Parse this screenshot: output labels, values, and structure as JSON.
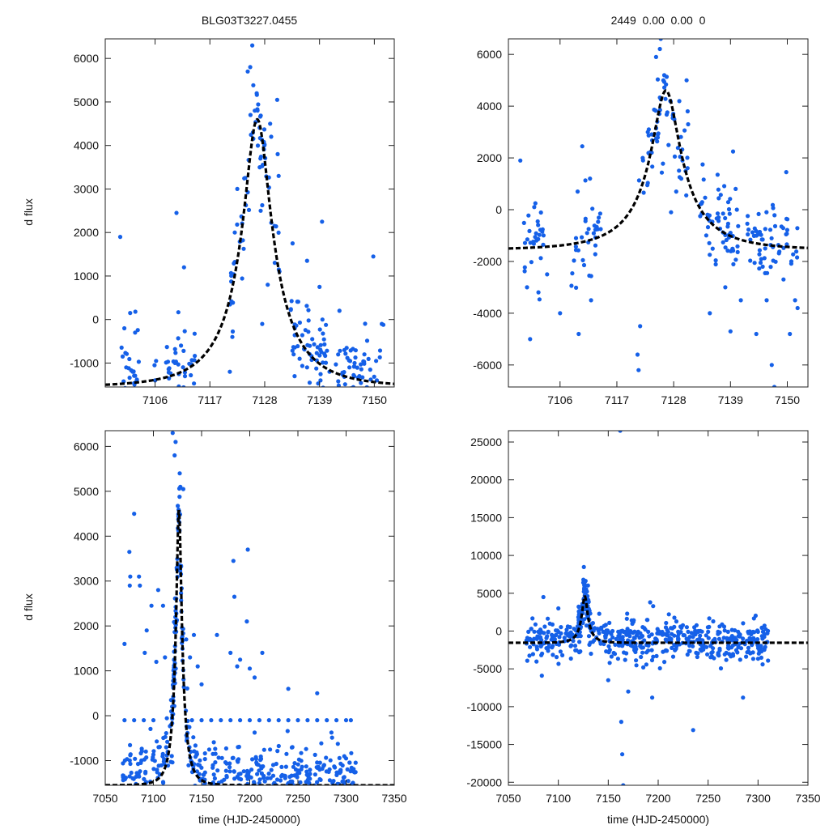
{
  "figure": {
    "left_title": "BLG03T3227.0455",
    "right_title": "2449  0.00  0.00  0"
  },
  "colors": {
    "points": "#1560e8",
    "model": "#000000",
    "axes": "#222222"
  },
  "chart_data": [
    {
      "type": "scatter",
      "id": "top-left",
      "title": "BLG03T3227.0455",
      "xlabel": "",
      "ylabel": "d flux",
      "xlim": [
        7096,
        7154
      ],
      "ylim": [
        -1550,
        6450
      ],
      "xticks": [
        7106,
        7117,
        7128,
        7139,
        7150
      ],
      "yticks": [
        -1000,
        0,
        1000,
        2000,
        3000,
        4000,
        5000,
        6000
      ],
      "model": {
        "t0": 7126.5,
        "peak": 4600,
        "baseline": -1550,
        "u0": 0.23,
        "tE": 12
      },
      "scatter_sigma": 550,
      "series": [
        {
          "name": "data",
          "points": [
            [
              7099.0,
              1900
            ],
            [
              7099.5,
              -850
            ],
            [
              7100.2,
              -1100
            ],
            [
              7101.0,
              150
            ],
            [
              7101.5,
              -1200
            ],
            [
              7102.0,
              -300
            ],
            [
              7105.9,
              -1050
            ],
            [
              7106.0,
              -1400
            ],
            [
              7106.2,
              -950
            ],
            [
              7110.3,
              2450
            ],
            [
              7110.0,
              -1000
            ],
            [
              7111.2,
              -600
            ],
            [
              7111.8,
              1200
            ],
            [
              7112.0,
              -1300
            ],
            [
              7121.0,
              -1200
            ],
            [
              7121.5,
              -400
            ],
            [
              7122.0,
              2000
            ],
            [
              7122.5,
              3000
            ],
            [
              7123.2,
              1800
            ],
            [
              7124.6,
              5700
            ],
            [
              7125.1,
              5800
            ],
            [
              7125.5,
              6300
            ],
            [
              7126.0,
              4800
            ],
            [
              7126.4,
              5200
            ],
            [
              7127.0,
              3500
            ],
            [
              7127.2,
              2500
            ],
            [
              7127.5,
              -100
            ],
            [
              7128.6,
              800
            ],
            [
              7129.1,
              4500
            ],
            [
              7129.3,
              4200
            ],
            [
              7130.5,
              5050
            ],
            [
              7130.6,
              3800
            ],
            [
              7130.8,
              3300
            ],
            [
              7133.6,
              1750
            ],
            [
              7133.8,
              -800
            ],
            [
              7134.0,
              -1300
            ],
            [
              7135.0,
              -900
            ],
            [
              7136.5,
              -1100
            ],
            [
              7136.5,
              1350
            ],
            [
              7139.0,
              750
            ],
            [
              7139.2,
              -1400
            ],
            [
              7139.5,
              2250
            ],
            [
              7141.0,
              -1200
            ],
            [
              7143.0,
              200
            ],
            [
              7144.0,
              -700
            ],
            [
              7145.0,
              -1100
            ],
            [
              7147.0,
              -1300
            ],
            [
              7148.0,
              -800
            ],
            [
              7149.8,
              1450
            ],
            [
              7150.5,
              -1400
            ],
            [
              7151.5,
              -100
            ]
          ]
        }
      ]
    },
    {
      "type": "scatter",
      "id": "top-right",
      "title": "2449  0.00  0.00  0",
      "xlabel": "",
      "ylabel": "",
      "xlim": [
        7096,
        7154
      ],
      "ylim": [
        -6850,
        6600
      ],
      "xticks": [
        7106,
        7117,
        7128,
        7139,
        7150
      ],
      "yticks": [
        -6000,
        -4000,
        -2000,
        0,
        2000,
        4000,
        6000
      ],
      "model": {
        "t0": 7126.5,
        "peak": 4600,
        "baseline": -1550,
        "u0": 0.23,
        "tE": 12
      },
      "scatter_sigma": 900,
      "series": [
        {
          "name": "data",
          "points": [
            [
              7098.3,
              1900
            ],
            [
              7099.6,
              -3000
            ],
            [
              7100.2,
              -5000
            ],
            [
              7101.0,
              100
            ],
            [
              7103.5,
              -2500
            ],
            [
              7106.0,
              -4000
            ],
            [
              7109.6,
              -4800
            ],
            [
              7109.4,
              700
            ],
            [
              7110.3,
              2450
            ],
            [
              7111.8,
              1200
            ],
            [
              7112.0,
              -3500
            ],
            [
              7121.0,
              -5600
            ],
            [
              7121.2,
              -6200
            ],
            [
              7121.5,
              -4500
            ],
            [
              7122.0,
              2000
            ],
            [
              7123.0,
              3000
            ],
            [
              7124.6,
              5900
            ],
            [
              7125.5,
              6600
            ],
            [
              7126.0,
              5000
            ],
            [
              7127.0,
              2500
            ],
            [
              7127.5,
              -100
            ],
            [
              7128.5,
              700
            ],
            [
              7130.5,
              5000
            ],
            [
              7130.7,
              3800
            ],
            [
              7130.8,
              3300
            ],
            [
              7133.6,
              1750
            ],
            [
              7135.0,
              -4000
            ],
            [
              7136.5,
              1350
            ],
            [
              7138.0,
              -3000
            ],
            [
              7139.0,
              -4700
            ],
            [
              7139.5,
              2250
            ],
            [
              7140.0,
              800
            ],
            [
              7141.0,
              -3500
            ],
            [
              7144.0,
              -4800
            ],
            [
              7146.0,
              -3500
            ],
            [
              7147.5,
              -6850
            ],
            [
              7147.0,
              -6000
            ],
            [
              7149.8,
              1450
            ],
            [
              7150.5,
              -4800
            ],
            [
              7151.5,
              -3500
            ],
            [
              7152.0,
              -3800
            ]
          ]
        }
      ]
    },
    {
      "type": "scatter",
      "id": "bottom-left",
      "title": "",
      "xlabel": "time (HJD-2450000)",
      "ylabel": "d flux",
      "xlim": [
        7050,
        7350
      ],
      "ylim": [
        -1550,
        6350
      ],
      "xticks": [
        7050,
        7100,
        7150,
        7200,
        7250,
        7300,
        7350
      ],
      "yticks": [
        -1000,
        0,
        1000,
        2000,
        3000,
        4000,
        5000,
        6000
      ],
      "model": {
        "t0": 7126.5,
        "peak": 4600,
        "baseline": -1550,
        "u0": 0.23,
        "tE": 12
      },
      "scatter_sigma": 550,
      "series": [
        {
          "name": "data",
          "points": [
            [
              7070.0,
              1600
            ],
            [
              7075.0,
              3650
            ],
            [
              7076.0,
              3100
            ],
            [
              7075.5,
              2900
            ],
            [
              7080.0,
              4500
            ],
            [
              7085.0,
              3100
            ],
            [
              7086.0,
              2900
            ],
            [
              7091.0,
              1400
            ],
            [
              7093.0,
              1900
            ],
            [
              7098.0,
              2450
            ],
            [
              7103.0,
              1200
            ],
            [
              7105.0,
              2800
            ],
            [
              7110.0,
              2450
            ],
            [
              7112.0,
              1300
            ],
            [
              7120.0,
              6300
            ],
            [
              7122.0,
              5800
            ],
            [
              7123.0,
              6100
            ],
            [
              7128.0,
              5100
            ],
            [
              7131.0,
              5050
            ],
            [
              7134.0,
              1700
            ],
            [
              7138.0,
              1300
            ],
            [
              7142.0,
              1800
            ],
            [
              7146.0,
              1100
            ],
            [
              7150.0,
              700
            ],
            [
              7166.0,
              1800
            ],
            [
              7180.0,
              1400
            ],
            [
              7183.0,
              3450
            ],
            [
              7184.0,
              2650
            ],
            [
              7187.0,
              1100
            ],
            [
              7190.0,
              1250
            ],
            [
              7198.0,
              3700
            ],
            [
              7197.0,
              2100
            ],
            [
              7200.0,
              1050
            ],
            [
              7205.0,
              850
            ],
            [
              7213.0,
              1400
            ],
            [
              7240.0,
              600
            ],
            [
              7270.0,
              500
            ]
          ]
        },
        {
          "name": "flagged",
          "points": [
            [
              7070,
              -100
            ],
            [
              7080,
              -100
            ],
            [
              7090,
              -100
            ],
            [
              7100,
              -100
            ],
            [
              7140,
              -100
            ],
            [
              7150,
              -100
            ],
            [
              7160,
              -100
            ],
            [
              7170,
              -100
            ],
            [
              7180,
              -100
            ],
            [
              7190,
              -100
            ],
            [
              7200,
              -100
            ],
            [
              7210,
              -100
            ],
            [
              7220,
              -100
            ],
            [
              7230,
              -100
            ],
            [
              7240,
              -100
            ],
            [
              7250,
              -100
            ],
            [
              7260,
              -100
            ],
            [
              7270,
              -100
            ],
            [
              7280,
              -100
            ],
            [
              7290,
              -100
            ],
            [
              7300,
              -100
            ],
            [
              7305,
              -100
            ]
          ]
        }
      ]
    },
    {
      "type": "scatter",
      "id": "bottom-right",
      "title": "",
      "xlabel": "time (HJD-2450000)",
      "ylabel": "",
      "xlim": [
        7050,
        7350
      ],
      "ylim": [
        -20400,
        26500
      ],
      "xticks": [
        7050,
        7100,
        7150,
        7200,
        7250,
        7300,
        7350
      ],
      "yticks": [
        -20000,
        -15000,
        -10000,
        -5000,
        0,
        5000,
        10000,
        15000,
        20000,
        25000
      ],
      "model": {
        "t0": 7126.5,
        "peak": 4600,
        "baseline": -1550,
        "u0": 0.23,
        "tE": 12
      },
      "scatter_sigma": 1800,
      "series": [
        {
          "name": "data",
          "points": [
            [
              7162.0,
              26500
            ],
            [
              7163.0,
              -12000
            ],
            [
              7164.0,
              -16300
            ],
            [
              7165.0,
              -20400
            ],
            [
              7235.0,
              -13100
            ],
            [
              7194.0,
              -8800
            ],
            [
              7285.0,
              -8800
            ],
            [
              7125.0,
              6400
            ],
            [
              7126.0,
              5700
            ],
            [
              7085.0,
              4500
            ],
            [
              7100.0,
              3000
            ],
            [
              7195.0,
              3300
            ],
            [
              7192.0,
              3800
            ],
            [
              7170.0,
              -8000
            ],
            [
              7150.0,
              -6500
            ]
          ]
        },
        {
          "name": "flagged",
          "points": [
            [
              7070,
              -100
            ],
            [
              7080,
              -100
            ],
            [
              7090,
              -100
            ],
            [
              7100,
              -100
            ],
            [
              7145,
              -100
            ],
            [
              7150,
              -100
            ],
            [
              7160,
              -100
            ],
            [
              7170,
              -100
            ],
            [
              7180,
              -100
            ],
            [
              7190,
              -100
            ],
            [
              7200,
              -100
            ],
            [
              7210,
              -100
            ],
            [
              7220,
              -100
            ],
            [
              7230,
              -100
            ],
            [
              7240,
              -100
            ],
            [
              7250,
              -100
            ],
            [
              7260,
              -100
            ],
            [
              7270,
              -100
            ],
            [
              7280,
              -100
            ],
            [
              7290,
              -100
            ],
            [
              7300,
              -100
            ],
            [
              7305,
              -100
            ]
          ]
        }
      ]
    }
  ]
}
